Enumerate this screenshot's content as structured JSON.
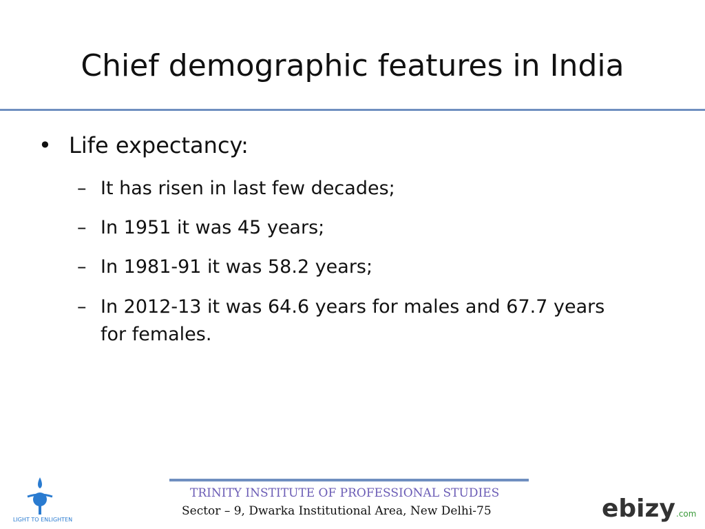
{
  "slide": {
    "title": "Chief demographic features in India",
    "bullet": "Life expectancy:",
    "subitems": [
      "It has risen in last few decades;",
      "In 1951 it was 45 years;",
      "In 1981-91 it was 58.2 years;",
      "In 2012-13 it was 64.6 years for males and 67.7 years for females."
    ]
  },
  "footer": {
    "institute": "TRINITY INSTITUTE OF PROFESSIONAL STUDIES",
    "address": "Sector – 9, Dwarka Institutional Area, New Delhi-75",
    "logo_left_text": "LIGHT TO ENLIGHTEN",
    "logo_right_text": "ebizy",
    "logo_right_suffix": ".com"
  }
}
